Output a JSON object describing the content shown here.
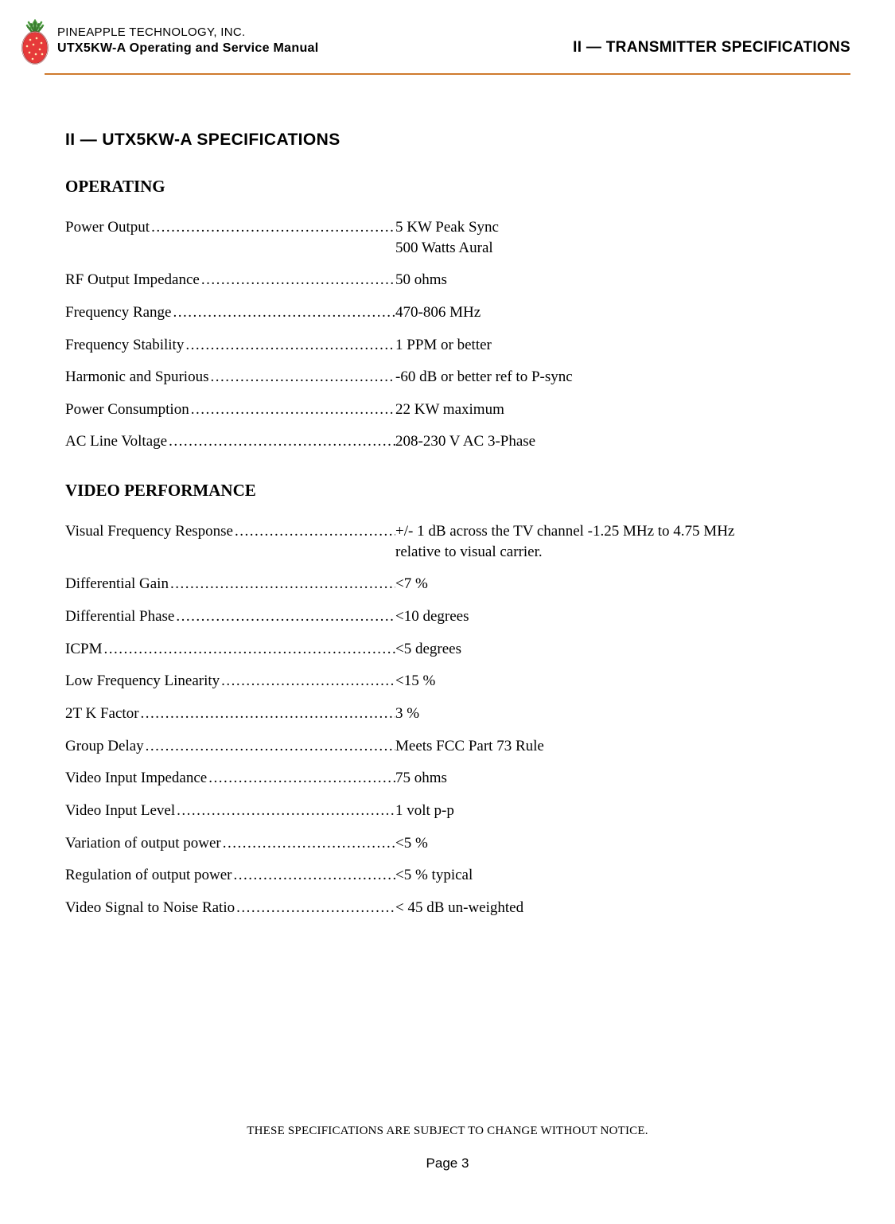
{
  "header": {
    "company": "PINEAPPLE TECHNOLOGY, INC.",
    "manual": "UTX5KW-A Operating and Service Manual",
    "section": "II — TRANSMITTER SPECIFICATIONS"
  },
  "logo": {
    "body_fill": "#e63a3a",
    "body_stroke": "#333333",
    "leaf_fill": "#4b9b3f",
    "seed_fill": "#ffffff"
  },
  "main_heading": "II — UTX5KW-A SPECIFICATIONS",
  "sections": {
    "operating": {
      "title": "OPERATING",
      "rows": [
        {
          "label": "Power Output ",
          "value": "5 KW Peak Sync",
          "value2": "500 Watts Aural"
        },
        {
          "label": "RF Output Impedance",
          "value": "50 ohms"
        },
        {
          "label": "Frequency Range",
          "value": "470-806 MHz"
        },
        {
          "label": "Frequency Stability",
          "value": "1 PPM or better"
        },
        {
          "label": "Harmonic and Spurious",
          "value": "-60 dB or better ref to P-sync"
        },
        {
          "label": "Power Consumption ",
          "value": "22 KW maximum"
        },
        {
          "label": "AC Line Voltage ",
          "value": "208-230 V AC 3-Phase"
        }
      ]
    },
    "video": {
      "title": "VIDEO PERFORMANCE",
      "rows": [
        {
          "label": "Visual Frequency Response",
          "value": "+/- 1 dB across the TV channel -1.25 MHz to 4.75 MHz",
          "value2": "relative to visual carrier."
        },
        {
          "label": "Differential Gain",
          "value": "<7 %"
        },
        {
          "label": "Differential Phase ",
          "value": "<10 degrees"
        },
        {
          "label": "ICPM ",
          "value": "<5 degrees"
        },
        {
          "label": "Low Frequency Linearity ",
          "value": "<15 %"
        },
        {
          "label": "2T K Factor",
          "value": "3 %"
        },
        {
          "label": "Group Delay ",
          "value": "Meets FCC Part 73 Rule"
        },
        {
          "label": "Video Input Impedance",
          "value": "75 ohms"
        },
        {
          "label": "Video Input Level ",
          "value": "1 volt p-p"
        },
        {
          "label": "Variation of output power",
          "value": "<5 %"
        },
        {
          "label": "Regulation of output power ",
          "value": "<5 % typical"
        },
        {
          "label": "Video Signal to Noise Ratio ",
          "value": "< 45 dB un-weighted"
        }
      ]
    }
  },
  "footer": {
    "disclaimer": "THESE SPECIFICATIONS ARE SUBJECT TO CHANGE WITHOUT NOTICE.",
    "page": "Page 3"
  },
  "style": {
    "rule_color": "#cf7a2e",
    "font_body": "Times New Roman",
    "font_headers": "Arial"
  }
}
